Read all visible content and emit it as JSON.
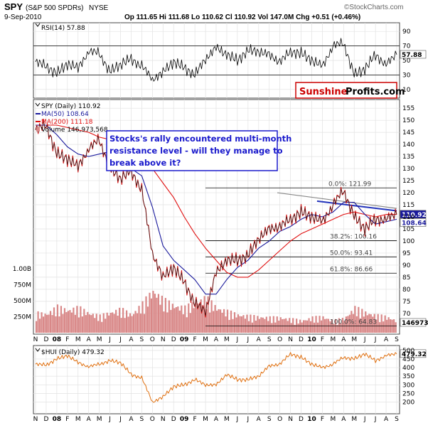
{
  "header": {
    "symbol": "SPY",
    "name": "(S&P 500 SPDRs)",
    "exchange": "NYSE",
    "date": "9-Sep-2010",
    "ohlc": "Op 111.65  Hi 111.68  Lo 110.62  Cl 110.92  Vol 147.0M  Chg +0.51 (+0.46%)",
    "source": "©StockCharts.com",
    "brand_a": "Sunshine",
    "brand_b": "Profits.com"
  },
  "rsi_panel": {
    "legend": "RSI(14) 57.88",
    "value_tag": "57.88",
    "ylim": [
      0,
      100
    ],
    "ticks": [
      10,
      30,
      50,
      70,
      90
    ],
    "levels": [
      30,
      70
    ]
  },
  "price_panel": {
    "legend_price": "SPY (Daily) 110.92",
    "legend_ma50": "MA(50) 108.64",
    "legend_ma200": "MA(200) 111.18",
    "legend_volume": "Volume 146,973,568",
    "price_tag": "110.92",
    "ma50_tag": "108.64",
    "ylim": [
      62,
      158
    ],
    "ticks": [
      70,
      75,
      80,
      85,
      90,
      95,
      100,
      105,
      110,
      115,
      120,
      125,
      130,
      135,
      140,
      145,
      150,
      155
    ],
    "volume_ticks": [
      "250M",
      "500M",
      "750M",
      "1.00B"
    ],
    "volume_tag": "146973",
    "annotation_lines": [
      "Stocks's rally encountered multi-month",
      "resistance level - will they manage to",
      "break above it?"
    ],
    "fib_levels": [
      {
        "label": "0.0%: 121.99",
        "value": 121.99
      },
      {
        "label": "38.2%: 100.16",
        "value": 100.16
      },
      {
        "label": "50.0%: 93.41",
        "value": 93.41
      },
      {
        "label": "61.8%: 86.66",
        "value": 86.66
      },
      {
        "label": "100.0%: 64.83",
        "value": 64.83
      }
    ]
  },
  "hui_panel": {
    "legend": "$HUI (Daily) 479.32",
    "value_tag": "479.32",
    "ylim": [
      140,
      520
    ],
    "ticks": [
      200,
      250,
      300,
      350,
      400,
      450,
      500
    ]
  },
  "x_axis": {
    "labels": [
      "N",
      "D",
      "08",
      "F",
      "M",
      "A",
      "M",
      "J",
      "J",
      "A",
      "S",
      "O",
      "N",
      "D",
      "09",
      "F",
      "M",
      "A",
      "M",
      "J",
      "J",
      "A",
      "S",
      "O",
      "N",
      "D",
      "10",
      "F",
      "M",
      "A",
      "M",
      "J",
      "J",
      "A",
      "S"
    ]
  },
  "colors": {
    "price_up": "#1a1a1a",
    "price_down": "#d01010",
    "ma50": "#1a1a9c",
    "ma200": "#e01010",
    "volume": "#d98888",
    "hui": "#e07010",
    "resistance_blue": "#2233bb",
    "annotation_text": "#1a1acc",
    "brand_red": "#cc0000"
  },
  "chart_data": [
    {
      "type": "line",
      "title": "RSI(14)",
      "x": [
        "2007-11",
        "2007-12",
        "2008-01",
        "2008-02",
        "2008-03",
        "2008-04",
        "2008-05",
        "2008-06",
        "2008-07",
        "2008-08",
        "2008-09",
        "2008-10",
        "2008-11",
        "2008-12",
        "2009-01",
        "2009-02",
        "2009-03",
        "2009-04",
        "2009-05",
        "2009-06",
        "2009-07",
        "2009-08",
        "2009-09",
        "2009-10",
        "2009-11",
        "2009-12",
        "2010-01",
        "2010-02",
        "2010-03",
        "2010-04",
        "2010-05",
        "2010-06",
        "2010-07",
        "2010-08",
        "2010-09"
      ],
      "series": [
        {
          "name": "RSI(14)",
          "values": [
            48,
            42,
            32,
            45,
            40,
            62,
            60,
            34,
            45,
            52,
            42,
            24,
            34,
            48,
            40,
            30,
            52,
            68,
            58,
            50,
            64,
            62,
            58,
            48,
            62,
            60,
            50,
            42,
            70,
            74,
            30,
            38,
            58,
            44,
            58
          ]
        }
      ]
    },
    {
      "type": "line",
      "title": "SPY (Daily)",
      "x": [
        "2007-11",
        "2007-12",
        "2008-01",
        "2008-02",
        "2008-03",
        "2008-04",
        "2008-05",
        "2008-06",
        "2008-07",
        "2008-08",
        "2008-09",
        "2008-10",
        "2008-11",
        "2008-12",
        "2009-01",
        "2009-02",
        "2009-03",
        "2009-04",
        "2009-05",
        "2009-06",
        "2009-07",
        "2009-08",
        "2009-09",
        "2009-10",
        "2009-11",
        "2009-12",
        "2010-01",
        "2010-02",
        "2010-03",
        "2010-04",
        "2010-05",
        "2010-06",
        "2010-07",
        "2010-08",
        "2010-09"
      ],
      "series": [
        {
          "name": "SPY",
          "values": [
            146,
            148,
            136,
            134,
            131,
            138,
            142,
            130,
            126,
            129,
            121,
            95,
            85,
            89,
            83,
            74,
            71,
            87,
            92,
            92,
            94,
            101,
            105,
            106,
            109,
            112,
            110,
            108,
            115,
            121,
            110,
            105,
            109,
            109,
            111
          ]
        },
        {
          "name": "MA(50)",
          "values": [
            148,
            148,
            144,
            139,
            136,
            135,
            136,
            137,
            133,
            130,
            127,
            114,
            98,
            92,
            88,
            84,
            78,
            78,
            84,
            89,
            92,
            97,
            100,
            104,
            106,
            109,
            111,
            110,
            112,
            116,
            116,
            111,
            107,
            108,
            109
          ]
        },
        {
          "name": "MA(200)",
          "values": [
            148,
            148,
            148,
            147,
            146,
            145,
            143,
            142,
            140,
            137,
            135,
            130,
            124,
            118,
            110,
            103,
            97,
            92,
            87,
            85,
            85,
            88,
            92,
            96,
            100,
            103,
            105,
            107,
            109,
            111,
            112,
            111,
            110,
            111,
            111
          ]
        }
      ],
      "annotations": [
        "Stocks's rally encountered multi-month",
        "resistance level - will they manage to",
        "break above it?"
      ]
    },
    {
      "type": "bar",
      "title": "Volume",
      "categories": [
        "2007-11",
        "2007-12",
        "2008-01",
        "2008-02",
        "2008-03",
        "2008-04",
        "2008-05",
        "2008-06",
        "2008-07",
        "2008-08",
        "2008-09",
        "2008-10",
        "2008-11",
        "2008-12",
        "2009-01",
        "2009-02",
        "2009-03",
        "2009-04",
        "2009-05",
        "2009-06",
        "2009-07",
        "2009-08",
        "2009-09",
        "2009-10",
        "2009-11",
        "2009-12",
        "2010-01",
        "2010-02",
        "2010-03",
        "2010-04",
        "2010-05",
        "2010-06",
        "2010-07",
        "2010-08",
        "2010-09"
      ],
      "values": [
        260,
        250,
        340,
        300,
        330,
        260,
        220,
        270,
        310,
        240,
        380,
        560,
        430,
        360,
        330,
        400,
        460,
        330,
        280,
        240,
        220,
        210,
        200,
        200,
        180,
        160,
        200,
        210,
        160,
        190,
        330,
        270,
        230,
        210,
        160
      ],
      "ylabel": "millions"
    },
    {
      "type": "line",
      "title": "$HUI (Daily)",
      "x": [
        "2007-11",
        "2007-12",
        "2008-01",
        "2008-02",
        "2008-03",
        "2008-04",
        "2008-05",
        "2008-06",
        "2008-07",
        "2008-08",
        "2008-09",
        "2008-10",
        "2008-11",
        "2008-12",
        "2009-01",
        "2009-02",
        "2009-03",
        "2009-04",
        "2009-05",
        "2009-06",
        "2009-07",
        "2009-08",
        "2009-09",
        "2009-10",
        "2009-11",
        "2009-12",
        "2010-01",
        "2010-02",
        "2010-03",
        "2010-04",
        "2010-05",
        "2010-06",
        "2010-07",
        "2010-08",
        "2010-09"
      ],
      "series": [
        {
          "name": "$HUI",
          "values": [
            420,
            415,
            450,
            470,
            430,
            405,
            420,
            440,
            430,
            360,
            340,
            200,
            230,
            290,
            300,
            330,
            300,
            300,
            360,
            330,
            330,
            350,
            410,
            420,
            480,
            460,
            420,
            400,
            420,
            460,
            450,
            480,
            440,
            470,
            479
          ]
        }
      ]
    }
  ]
}
